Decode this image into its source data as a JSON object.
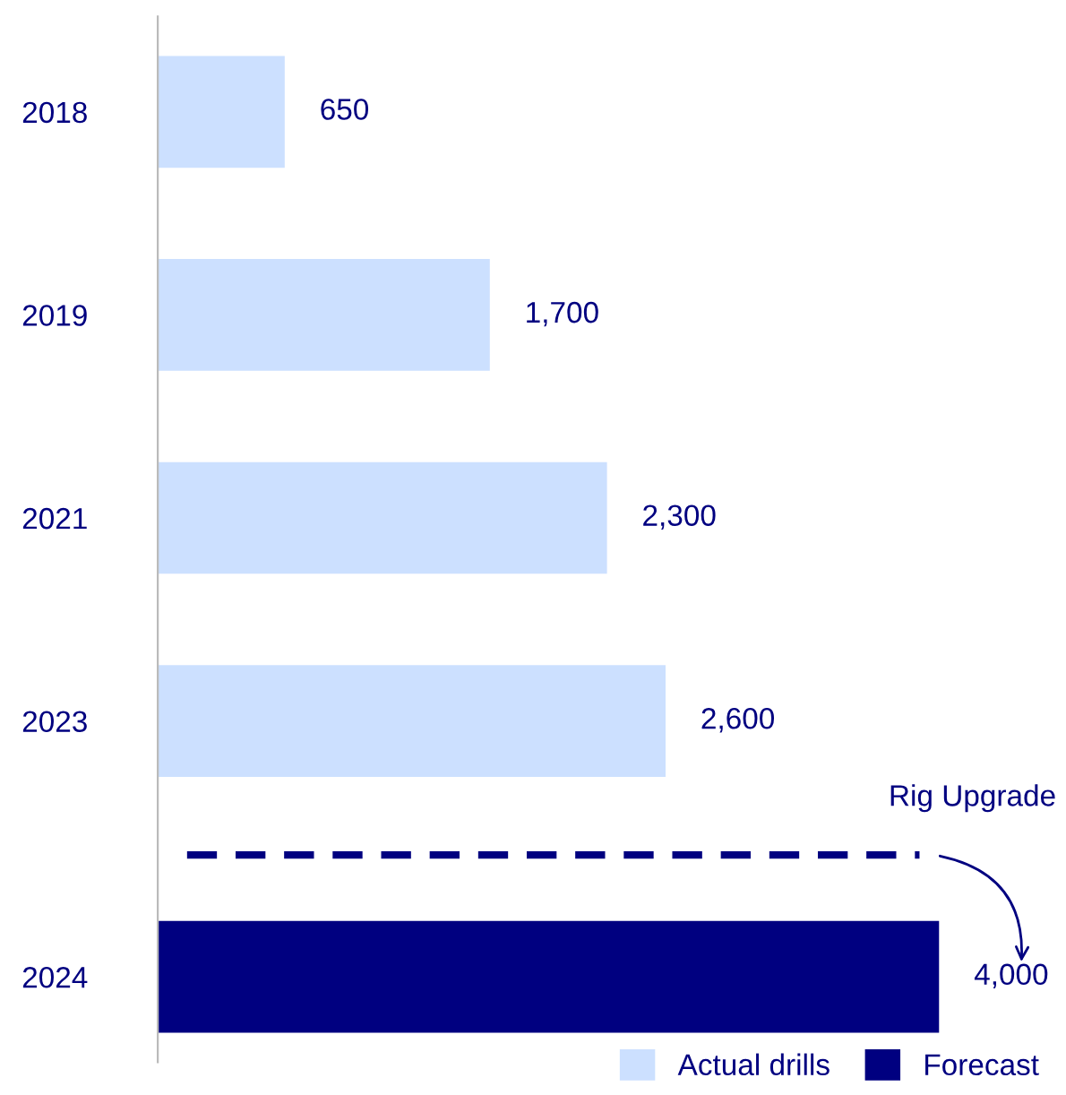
{
  "chart_data": {
    "type": "bar",
    "orientation": "horizontal",
    "categories": [
      "2018",
      "2019",
      "2021",
      "2023",
      "2024"
    ],
    "series": [
      {
        "name": "Actual drills",
        "color": "#cce0ff",
        "values": [
          650,
          1700,
          2300,
          2600,
          null
        ],
        "value_labels": [
          "650",
          "1,700",
          "2,300",
          "2,600",
          null
        ]
      },
      {
        "name": "Forecast",
        "color": "#000080",
        "values": [
          null,
          null,
          null,
          null,
          4000
        ],
        "value_labels": [
          null,
          null,
          null,
          null,
          "4,000"
        ]
      }
    ],
    "tick_labels": "y",
    "legend": "bottom right",
    "grid": false,
    "ref_lines": [
      {
        "axis": "y",
        "value": "2024",
        "label": "Rig Upgrade",
        "color": "#000080",
        "line_style": "dashed"
      }
    ]
  }
}
